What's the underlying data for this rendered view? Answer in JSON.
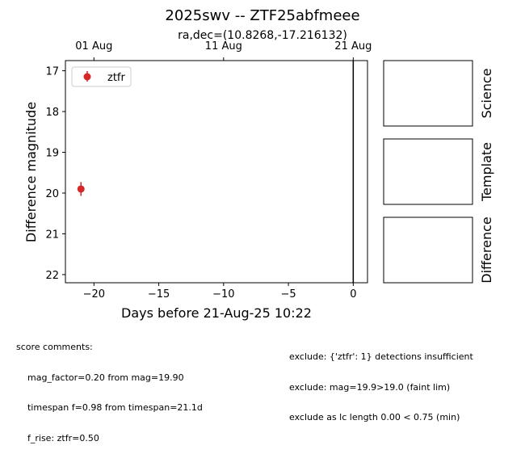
{
  "chart_data": {
    "type": "scatter",
    "title": "2025swv -- ZTF25abfmeee",
    "subtitle": "ra,dec=(10.8268,-17.216132)",
    "xlabel": "Days before 21-Aug-25 10:22",
    "ylabel": "Difference magnitude",
    "xlim": [
      -22.2,
      1.1
    ],
    "ylim": [
      22.2,
      16.75
    ],
    "y_inverted": true,
    "xticks": [
      -20,
      -15,
      -10,
      -5,
      0
    ],
    "xtick_labels": [
      "−20",
      "−15",
      "−10",
      "−5",
      "0"
    ],
    "yticks": [
      17,
      18,
      19,
      20,
      21,
      22
    ],
    "ytick_labels": [
      "17",
      "18",
      "19",
      "20",
      "21",
      "22"
    ],
    "top_axis": {
      "ticks": [
        -20.0,
        -10.0,
        0.0
      ],
      "labels": [
        "01 Aug",
        "11 Aug",
        "21 Aug"
      ]
    },
    "vline_x": 0,
    "grid": false,
    "legend": "upper-left",
    "series": [
      {
        "name": "ztfr",
        "color": "#d62728",
        "points": [
          {
            "x": -21.0,
            "y": 19.9,
            "yerr": 0.17
          }
        ]
      }
    ]
  },
  "side_panels": [
    "Science",
    "Template",
    "Difference"
  ],
  "comments": {
    "left": [
      "score comments:",
      "    mag_factor=0.20 from mag=19.90",
      "    timespan f=0.98 from timespan=21.1d",
      "    f_rise: ztfr=0.50"
    ],
    "right": [
      "exclude: {'ztfr': 1} detections insufficient",
      "exclude: mag=19.9>19.0 (faint lim)",
      "exclude as lc length 0.00 < 0.75 (min)"
    ]
  }
}
